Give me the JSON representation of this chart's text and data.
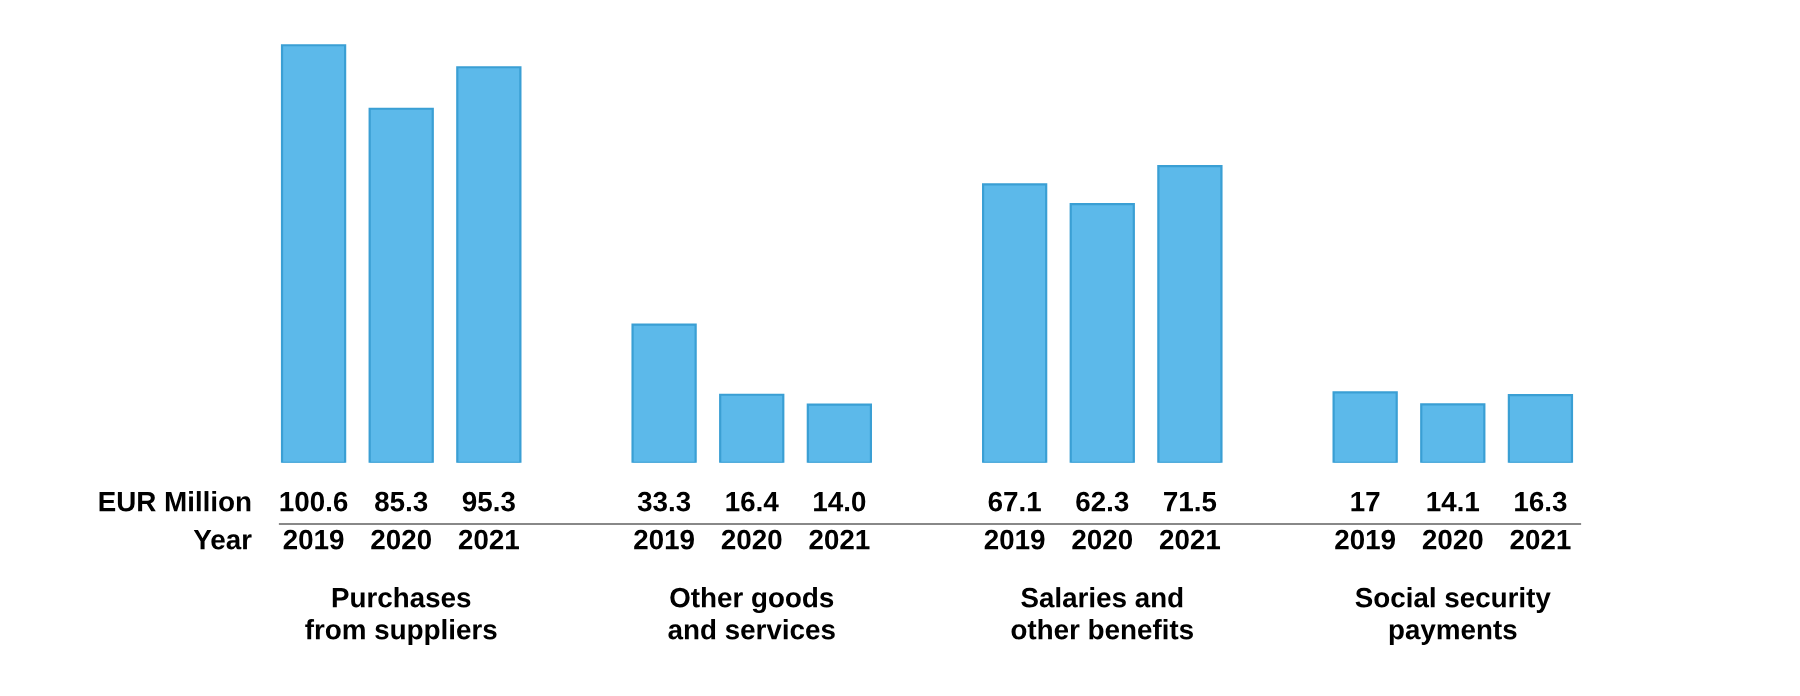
{
  "chart_data": {
    "type": "bar",
    "categories": [
      "2019",
      "2020",
      "2021",
      null,
      "2019",
      "2020",
      "2021",
      null,
      "2019",
      "2020",
      "2021",
      null,
      "2019",
      "2020",
      "2021"
    ],
    "values": [
      100.6,
      85.3,
      95.3,
      null,
      33.3,
      16.4,
      14.0,
      null,
      67.1,
      62.3,
      71.5,
      null,
      17,
      14.1,
      16.3
    ],
    "value_labels": [
      "100.6",
      "85.3",
      "95.3",
      null,
      "33.3",
      "16.4",
      "14.0",
      null,
      "67.1",
      "62.3",
      "71.5",
      null,
      "17",
      "14.1",
      "16.3"
    ],
    "color": "#5cb9ea",
    "annotations": [
      "EUR Million",
      "Year",
      "Purchases\nfrom suppliers",
      "Other goods\nand services",
      "Salaries and\nother benefits",
      "Social security\npayments"
    ]
  }
}
